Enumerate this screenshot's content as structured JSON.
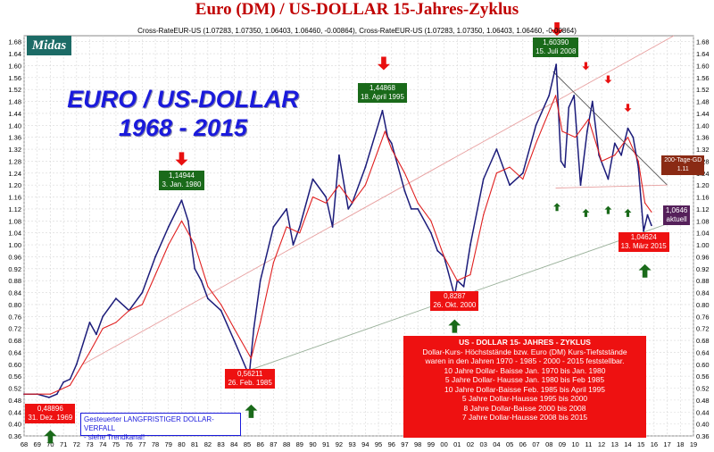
{
  "header": {
    "title": "Euro (DM) / US-DOLLAR 15-Jahres-Zyklus",
    "subtitle": "Cross-RateEUR-US (1.07283, 1.07350, 1.06403, 1.06460, -0.00864),  Cross-RateEUR-US (1.07283, 1.07350, 1.06403, 1.06460, -0.00864)"
  },
  "logo": {
    "text": "Midas"
  },
  "big_title": {
    "line1": "EURO / US-DOLLAR",
    "line2": "1968 - 2015"
  },
  "chart_data": {
    "type": "line",
    "x_unit": "year",
    "xlim": [
      1968,
      2019
    ],
    "ylim": [
      0.36,
      1.7
    ],
    "x_tick_labels": [
      "68",
      "69",
      "70",
      "71",
      "72",
      "73",
      "74",
      "75",
      "76",
      "77",
      "78",
      "79",
      "80",
      "81",
      "82",
      "83",
      "84",
      "85",
      "86",
      "87",
      "88",
      "89",
      "90",
      "91",
      "92",
      "93",
      "94",
      "95",
      "96",
      "97",
      "98",
      "99",
      "00",
      "01",
      "02",
      "03",
      "04",
      "05",
      "06",
      "07",
      "08",
      "09",
      "10",
      "11",
      "12",
      "13",
      "14",
      "15",
      "16",
      "17",
      "18",
      "19"
    ],
    "y_ticks": [
      0.36,
      0.4,
      0.44,
      0.48,
      0.52,
      0.56,
      0.6,
      0.64,
      0.68,
      0.72,
      0.76,
      0.8,
      0.84,
      0.88,
      0.92,
      0.96,
      1.0,
      1.04,
      1.08,
      1.12,
      1.16,
      1.2,
      1.24,
      1.28,
      1.32,
      1.36,
      1.4,
      1.44,
      1.48,
      1.52,
      1.56,
      1.6,
      1.64,
      1.68
    ],
    "y_tick_labels": [
      "0.36",
      "0.40",
      "0.44",
      "0.48",
      "0.52",
      "0.56",
      "0.60",
      "0.64",
      "0.68",
      "0.72",
      "0.76",
      "0.80",
      "0.84",
      "0.88",
      "0.92",
      "0.96",
      "1.00",
      "1.04",
      "1.08",
      "1.12",
      "1.16",
      "1.20",
      "1.24",
      "1.28",
      "1.32",
      "1.36",
      "1.40",
      "1.44",
      "1.48",
      "1.52",
      "1.56",
      "1.60",
      "1.64",
      "1.68"
    ],
    "series": [
      {
        "color": "#1c1c7a",
        "x": [
          1968,
          1969,
          1969.9,
          1970.5,
          1971,
          1971.5,
          1972,
          1973,
          1973.5,
          1974,
          1975,
          1976,
          1977,
          1978,
          1979,
          1980.0,
          1980.5,
          1981,
          1981.5,
          1982,
          1983,
          1984,
          1985.15,
          1985.5,
          1986,
          1987,
          1988,
          1988.5,
          1989,
          1990,
          1991,
          1991.5,
          1992,
          1992.7,
          1993,
          1994,
          1995.3,
          1995.7,
          1996,
          1997,
          1997.5,
          1998,
          1999,
          1999.5,
          2000,
          2000.8,
          2001,
          2001.5,
          2002,
          2003,
          2004,
          2005,
          2006,
          2007,
          2008.0,
          2008.54,
          2008.9,
          2009.2,
          2009.5,
          2009.9,
          2010.4,
          2010.9,
          2011.3,
          2011.8,
          2012.5,
          2013,
          2013.5,
          2014.0,
          2014.4,
          2014.8,
          2015.2,
          2015.5,
          2015.8
        ],
        "y": [
          0.5,
          0.5,
          0.489,
          0.5,
          0.54,
          0.55,
          0.6,
          0.74,
          0.7,
          0.76,
          0.82,
          0.78,
          0.84,
          0.96,
          1.06,
          1.149,
          1.08,
          0.92,
          0.88,
          0.82,
          0.78,
          0.68,
          0.562,
          0.72,
          0.88,
          1.06,
          1.12,
          1.0,
          1.06,
          1.22,
          1.16,
          1.06,
          1.3,
          1.12,
          1.14,
          1.26,
          1.449,
          1.36,
          1.34,
          1.18,
          1.12,
          1.12,
          1.04,
          0.98,
          0.96,
          0.829,
          0.88,
          0.86,
          1.0,
          1.22,
          1.32,
          1.2,
          1.24,
          1.4,
          1.5,
          1.604,
          1.28,
          1.26,
          1.46,
          1.5,
          1.2,
          1.38,
          1.48,
          1.3,
          1.22,
          1.34,
          1.3,
          1.39,
          1.36,
          1.26,
          1.046,
          1.1,
          1.065
        ]
      },
      {
        "name": "200-Tage-GD",
        "color": "#e02020",
        "x": [
          1968,
          1970,
          1971.5,
          1973,
          1974,
          1975,
          1976,
          1977,
          1978,
          1979,
          1980,
          1981,
          1982,
          1983,
          1984,
          1985.3,
          1986,
          1987,
          1988,
          1989,
          1990,
          1991,
          1992,
          1993,
          1994,
          1995.5,
          1996,
          1997,
          1998,
          1999,
          2000,
          2001,
          2002,
          2003,
          2004,
          2005,
          2006,
          2007,
          2008.5,
          2009,
          2010,
          2011,
          2012,
          2013,
          2014,
          2014.8,
          2015.3,
          2015.8
        ],
        "y": [
          0.5,
          0.5,
          0.53,
          0.64,
          0.72,
          0.74,
          0.78,
          0.8,
          0.9,
          1.0,
          1.08,
          1.0,
          0.86,
          0.8,
          0.72,
          0.62,
          0.74,
          0.94,
          1.06,
          1.04,
          1.16,
          1.14,
          1.2,
          1.14,
          1.2,
          1.38,
          1.32,
          1.24,
          1.14,
          1.08,
          0.96,
          0.88,
          0.9,
          1.1,
          1.24,
          1.26,
          1.22,
          1.34,
          1.5,
          1.38,
          1.36,
          1.42,
          1.28,
          1.3,
          1.36,
          1.28,
          1.14,
          1.11
        ]
      }
    ],
    "trend_lines": [
      {
        "color": "#e8a0a0",
        "x": [
          1972.5,
          2017.5
        ],
        "y": [
          0.6,
          1.7
        ]
      },
      {
        "color": "#99b099",
        "x": [
          1984.5,
          2017.0
        ],
        "y": [
          0.57,
          1.07
        ]
      },
      {
        "color": "#555555",
        "x": [
          2008.3,
          2017.0
        ],
        "y": [
          1.58,
          1.2
        ]
      },
      {
        "color": "#e8a0a0",
        "x": [
          2008.5,
          2017.0
        ],
        "y": [
          1.19,
          1.2
        ]
      }
    ]
  },
  "annotations": [
    {
      "style": "green",
      "x": 1980.0,
      "y": 1.215,
      "lines": [
        "1,14944",
        "3. Jan. 1980"
      ]
    },
    {
      "style": "green",
      "x": 1995.3,
      "y": 1.51,
      "lines": [
        "1,44868",
        "18. April 1995"
      ]
    },
    {
      "style": "green",
      "x": 2008.5,
      "y": 1.66,
      "lines": [
        "1,60390",
        "15. Juli 2008"
      ]
    },
    {
      "style": "red",
      "x": 1970.0,
      "y": 0.435,
      "lines": [
        "0,48896",
        "31. Dez. 1969"
      ]
    },
    {
      "style": "red",
      "x": 1985.2,
      "y": 0.55,
      "lines": [
        "0,56211",
        "26. Feb. 1985"
      ]
    },
    {
      "style": "red",
      "x": 2000.8,
      "y": 0.812,
      "lines": [
        "0,8287",
        "26. Okt. 2000"
      ]
    },
    {
      "style": "red",
      "x": 2015.2,
      "y": 1.01,
      "lines": [
        "1,04624",
        "13. März  2015"
      ]
    },
    {
      "style": "purple",
      "x": 2017.7,
      "y": 1.1,
      "lines": [
        "1,0646",
        "aktuell"
      ]
    },
    {
      "style": "brown",
      "x": 2018.2,
      "y": 1.265,
      "lines": [
        "200-Tage-GD",
        "1.11"
      ]
    }
  ],
  "arrows": [
    {
      "color": "#e81010",
      "dir": "down",
      "x": 1980.0,
      "y": 1.265
    },
    {
      "color": "#e81010",
      "dir": "down",
      "x": 1995.4,
      "y": 1.585
    },
    {
      "color": "#e81010",
      "dir": "down",
      "x": 2008.6,
      "y": 1.7
    },
    {
      "color": "#e81010",
      "dir": "down",
      "x": 2010.8,
      "y": 1.585,
      "small": true
    },
    {
      "color": "#e81010",
      "dir": "down",
      "x": 2012.5,
      "y": 1.54,
      "small": true
    },
    {
      "color": "#e81010",
      "dir": "down",
      "x": 2014.0,
      "y": 1.445,
      "small": true
    },
    {
      "color": "#1a6a1a",
      "dir": "up",
      "x": 1970.0,
      "y": 0.38
    },
    {
      "color": "#1a6a1a",
      "dir": "up",
      "x": 1985.3,
      "y": 0.465
    },
    {
      "color": "#1a6a1a",
      "dir": "up",
      "x": 2000.8,
      "y": 0.75
    },
    {
      "color": "#1a6a1a",
      "dir": "up",
      "x": 2015.3,
      "y": 0.935
    },
    {
      "color": "#1a6a1a",
      "dir": "up",
      "x": 2008.6,
      "y": 1.14,
      "small": true
    },
    {
      "color": "#1a6a1a",
      "dir": "up",
      "x": 2010.8,
      "y": 1.12,
      "small": true
    },
    {
      "color": "#1a6a1a",
      "dir": "up",
      "x": 2012.5,
      "y": 1.13,
      "small": true
    },
    {
      "color": "#1a6a1a",
      "dir": "up",
      "x": 2014.0,
      "y": 1.12,
      "small": true
    }
  ],
  "info_box": {
    "lines": [
      "US - DOLLAR  15- JAHRES - ZYKLUS",
      "Dollar-Kurs- Höchststände bzw. Euro (DM) Kurs-Tiefststände",
      "waren in den Jahren 1970 - 1985 - 2000 - 2015 feststellbar.",
      "10 Jahre Dollar- Baisse   Jan. 1970 bis Jan. 1980",
      "5 Jahre Dollar- Hausse  Jan. 1980 bis Feb 1985",
      "10 Jahre Dollar-Baisse  Feb. 1985 bis April 1995",
      "5 Jahre Dollar-Hausse 1995 bis 2000",
      "8 Jahre Dollar-Baisse 2000 bis 2008",
      "7 Jahre Dollar-Hausse 2008 bis 2015"
    ]
  },
  "trend_note": {
    "line1": "Gesteuerter LANGFRISTIGER DOLLAR-VERFALL",
    "line2": "- siehe Trendkanal!"
  }
}
